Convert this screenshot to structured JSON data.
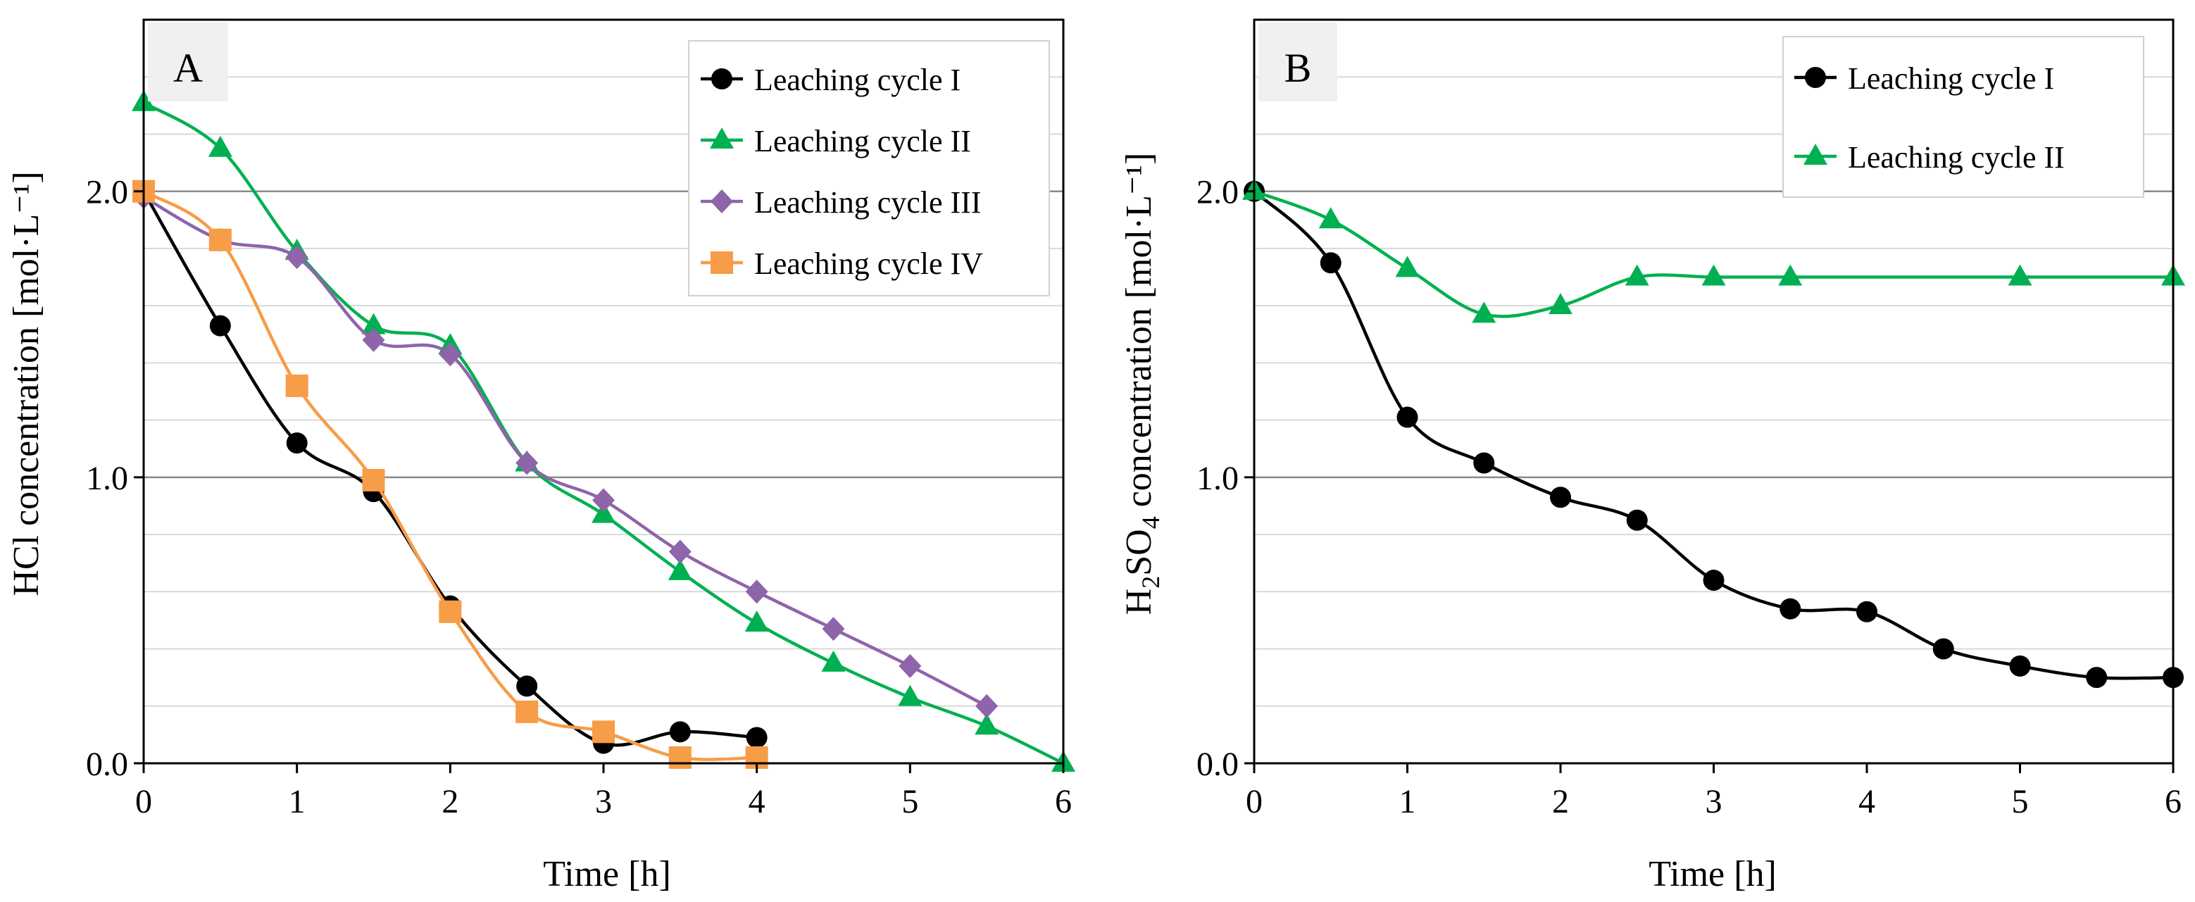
{
  "chart_data": [
    {
      "type": "line",
      "panel_label": "A",
      "xlabel": "Time [h]",
      "ylabel": "HCl concentration [mol·L⁻¹]",
      "xlim": [
        0,
        6
      ],
      "ylim": [
        0,
        2.6
      ],
      "xticks": [
        0,
        1,
        2,
        3,
        4,
        5,
        6
      ],
      "yticks": [
        0,
        1,
        2
      ],
      "xtick_labels": [
        "0",
        "1",
        "2",
        "3",
        "4",
        "5",
        "6"
      ],
      "ytick_labels": [
        "0.0",
        "1.0",
        "2.0"
      ],
      "minor_grid_step": 0.2,
      "legend_position": "top-right",
      "series": [
        {
          "name": "Leaching cycle I",
          "color": "#000000",
          "marker": "circle",
          "x": [
            0,
            0.5,
            1,
            1.5,
            2,
            2.5,
            3,
            3.5,
            4
          ],
          "y": [
            2.0,
            1.53,
            1.12,
            0.95,
            0.55,
            0.27,
            0.07,
            0.11,
            0.09
          ]
        },
        {
          "name": "Leaching cycle II",
          "color": "#00b050",
          "marker": "triangle",
          "x": [
            0,
            0.5,
            1,
            1.5,
            2,
            2.5,
            3,
            3.5,
            4,
            4.5,
            5,
            5.5,
            6
          ],
          "y": [
            2.31,
            2.15,
            1.79,
            1.53,
            1.46,
            1.05,
            0.87,
            0.67,
            0.49,
            0.35,
            0.23,
            0.13,
            0.0
          ]
        },
        {
          "name": "Leaching cycle III",
          "color": "#8e64aa",
          "marker": "diamond",
          "x": [
            0,
            0.5,
            1,
            1.5,
            2,
            2.5,
            3,
            3.5,
            4,
            4.5,
            5,
            5.5
          ],
          "y": [
            1.98,
            1.83,
            1.77,
            1.48,
            1.43,
            1.05,
            0.92,
            0.74,
            0.6,
            0.47,
            0.34,
            0.2
          ]
        },
        {
          "name": "Leaching cycle IV",
          "color": "#f79c47",
          "marker": "square",
          "x": [
            0,
            0.5,
            1,
            1.5,
            2,
            2.5,
            3,
            3.5,
            4
          ],
          "y": [
            2.0,
            1.83,
            1.32,
            0.99,
            0.53,
            0.18,
            0.11,
            0.02,
            0.02
          ]
        }
      ]
    },
    {
      "type": "line",
      "panel_label": "B",
      "xlabel": "Time [h]",
      "ylabel_main": "H",
      "ylabel_sub1": "2",
      "ylabel_mid": "SO",
      "ylabel_sub2": "4",
      "ylabel_tail": " concentration [mol·L⁻¹]",
      "xlim": [
        0,
        6
      ],
      "ylim": [
        0,
        2.6
      ],
      "xticks": [
        0,
        1,
        2,
        3,
        4,
        5,
        6
      ],
      "yticks": [
        0,
        1,
        2
      ],
      "xtick_labels": [
        "0",
        "1",
        "2",
        "3",
        "4",
        "5",
        "6"
      ],
      "ytick_labels": [
        "0.0",
        "1.0",
        "2.0"
      ],
      "minor_grid_step": 0.2,
      "legend_position": "top-right",
      "series": [
        {
          "name": "Leaching cycle I",
          "color": "#000000",
          "marker": "circle",
          "x": [
            0,
            0.5,
            1,
            1.5,
            2,
            2.5,
            3,
            3.5,
            4,
            4.5,
            5,
            5.5,
            6
          ],
          "y": [
            2.0,
            1.75,
            1.21,
            1.05,
            0.93,
            0.85,
            0.64,
            0.54,
            0.53,
            0.4,
            0.34,
            0.3,
            0.3
          ]
        },
        {
          "name": "Leaching cycle II",
          "color": "#00b050",
          "marker": "triangle",
          "x": [
            0,
            0.5,
            1,
            1.5,
            2,
            2.5,
            3,
            3.5,
            5,
            6
          ],
          "y": [
            2.0,
            1.9,
            1.73,
            1.57,
            1.6,
            1.7,
            1.7,
            1.7,
            1.7,
            1.7
          ]
        }
      ]
    }
  ]
}
